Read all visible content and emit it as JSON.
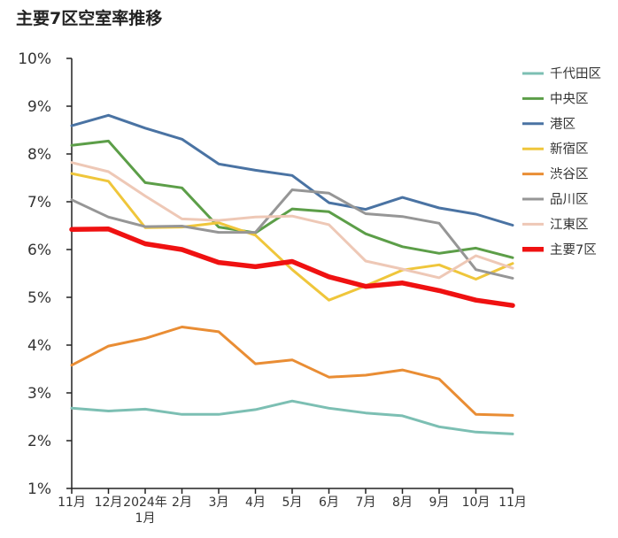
{
  "chart_data": {
    "type": "line",
    "title": "主要7区空室率推移",
    "xlabel": "",
    "ylabel": "",
    "ylim": [
      1,
      10
    ],
    "y_ticks": [
      "1%",
      "2%",
      "3%",
      "4%",
      "5%",
      "6%",
      "7%",
      "8%",
      "9%",
      "10%"
    ],
    "categories": [
      "11月",
      "12月",
      "2024年\n1月",
      "2月",
      "3月",
      "4月",
      "5月",
      "6月",
      "7月",
      "8月",
      "9月",
      "10月",
      "11月"
    ],
    "legend_position": "right",
    "grid": false,
    "series": [
      {
        "name": "千代田区",
        "color": "#7cbfb3",
        "width": 3,
        "values": [
          2.68,
          2.62,
          2.66,
          2.55,
          2.55,
          2.65,
          2.83,
          2.68,
          2.58,
          2.52,
          2.29,
          2.18,
          2.14
        ]
      },
      {
        "name": "中央区",
        "color": "#5c9e48",
        "width": 3,
        "values": [
          8.18,
          8.27,
          7.4,
          7.29,
          6.47,
          6.35,
          6.85,
          6.79,
          6.33,
          6.06,
          5.92,
          6.03,
          5.83
        ]
      },
      {
        "name": "港区",
        "color": "#4a73a3",
        "width": 3,
        "values": [
          8.59,
          8.81,
          8.54,
          8.31,
          7.79,
          7.66,
          7.55,
          6.98,
          6.84,
          7.09,
          6.87,
          6.74,
          6.51
        ]
      },
      {
        "name": "新宿区",
        "color": "#efc63b",
        "width": 3,
        "values": [
          7.59,
          7.43,
          6.46,
          6.47,
          6.56,
          6.3,
          5.58,
          4.94,
          5.24,
          5.57,
          5.68,
          5.38,
          5.71
        ]
      },
      {
        "name": "渋谷区",
        "color": "#e98d34",
        "width": 3,
        "values": [
          3.58,
          3.98,
          4.14,
          4.38,
          4.28,
          3.61,
          3.69,
          3.33,
          3.37,
          3.48,
          3.29,
          2.55,
          2.53
        ]
      },
      {
        "name": "品川区",
        "color": "#969696",
        "width": 3,
        "values": [
          7.04,
          6.68,
          6.48,
          6.49,
          6.36,
          6.36,
          7.25,
          7.18,
          6.75,
          6.69,
          6.55,
          5.58,
          5.4
        ]
      },
      {
        "name": "江東区",
        "color": "#eec8b6",
        "width": 3,
        "values": [
          7.82,
          7.63,
          7.12,
          6.64,
          6.61,
          6.68,
          6.7,
          6.52,
          5.76,
          5.59,
          5.41,
          5.87,
          5.61
        ]
      },
      {
        "name": "主要7区",
        "color": "#ef1111",
        "width": 5.5,
        "values": [
          6.42,
          6.43,
          6.12,
          6.0,
          5.73,
          5.64,
          5.75,
          5.43,
          5.23,
          5.3,
          5.14,
          4.94,
          4.83
        ]
      }
    ]
  }
}
